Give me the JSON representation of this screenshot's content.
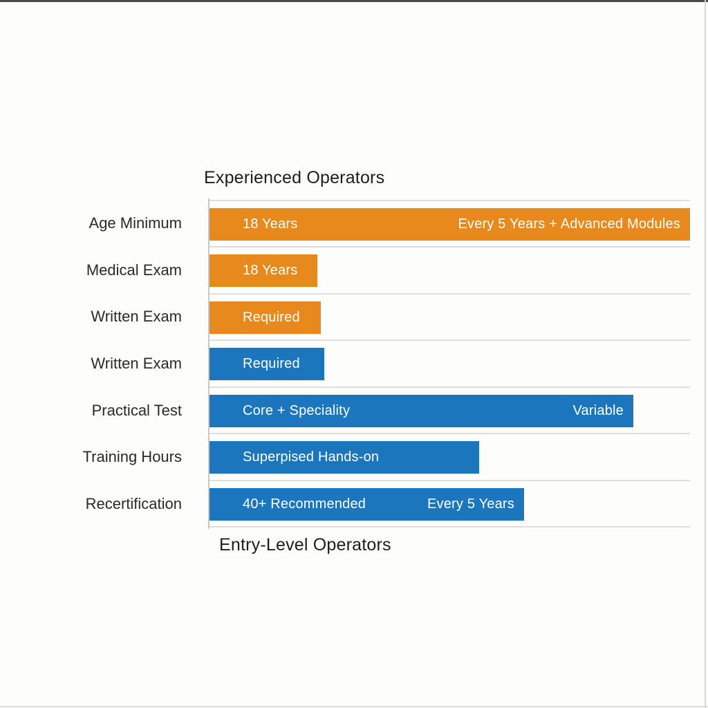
{
  "page": {
    "title_top": "Experienced Operators",
    "title_bottom": "Entry-Level Operators"
  },
  "colors": {
    "experienced": "#E8891E",
    "entry": "#1B76BD",
    "bar_text": "#FFFFFF",
    "grid": "#DEDEDE",
    "axis": "#C8C8C8",
    "title_text": "#1D1D1D",
    "label_text": "#2A2A2A"
  },
  "chart_data": {
    "type": "bar",
    "orientation": "horizontal",
    "title": "Experienced Operators",
    "footer": "Entry-Level Operators",
    "grid": true,
    "axis_range_frac": [
      0,
      1
    ],
    "series_labels": {
      "experienced": "Experienced Operators",
      "entry": "Entry-Level Operators"
    },
    "categories": [
      "Age Minimum",
      "Medical Exam",
      "Written Exam",
      "Written Exam",
      "Practical Test",
      "Training Hours",
      "Recertification"
    ],
    "rows": [
      {
        "category": "Age Minimum",
        "series": "experienced",
        "length_frac": 1.0,
        "left_label": "18 Years",
        "right_label": "Every 5 Years + Advanced Modules"
      },
      {
        "category": "Medical Exam",
        "series": "experienced",
        "length_frac": 0.225,
        "left_label": "18 Years",
        "right_label": ""
      },
      {
        "category": "Written Exam",
        "series": "experienced",
        "length_frac": 0.232,
        "left_label": "Required",
        "right_label": ""
      },
      {
        "category": "Written Exam",
        "series": "entry",
        "length_frac": 0.239,
        "left_label": "Required",
        "right_label": ""
      },
      {
        "category": "Practical Test",
        "series": "entry",
        "length_frac": 0.882,
        "left_label": "Core + Speciality",
        "right_label": "Variable"
      },
      {
        "category": "Training Hours",
        "series": "entry",
        "length_frac": 0.561,
        "left_label": "Superpised Hands-on",
        "right_label": ""
      },
      {
        "category": "Recertification",
        "series": "entry",
        "length_frac": 0.655,
        "left_label": "40+ Recommended",
        "right_label": "Every 5 Years"
      }
    ]
  }
}
